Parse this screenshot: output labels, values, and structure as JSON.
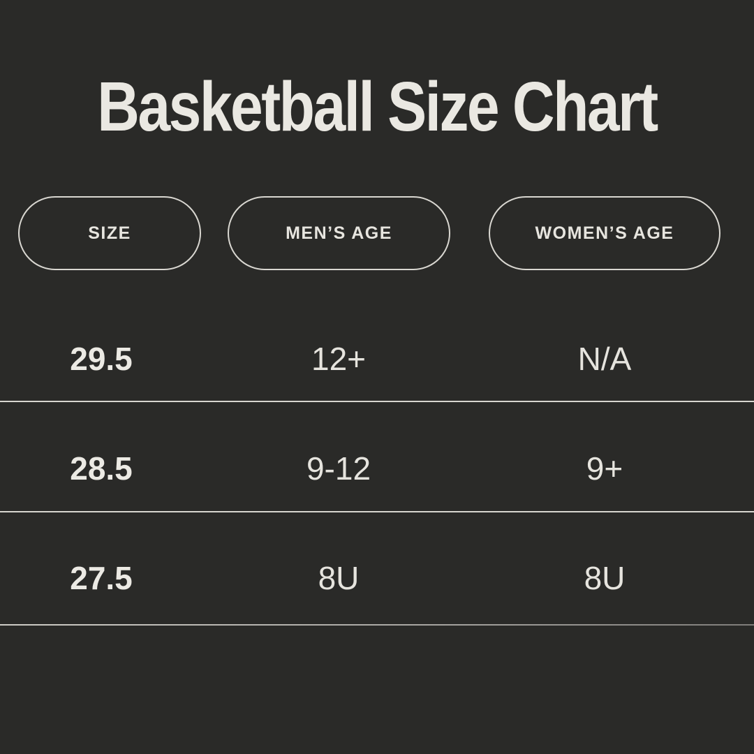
{
  "page": {
    "title": "Basketball Size Chart"
  },
  "colors": {
    "background": "#2a2a28",
    "text_cream": "#eae8e2",
    "pill_border": "#d9d7d1",
    "divider": "#d8d6d0"
  },
  "table": {
    "columns": [
      {
        "label": "SIZE"
      },
      {
        "label": "MEN’S AGE"
      },
      {
        "label": "WOMEN’S AGE"
      }
    ],
    "rows": [
      {
        "cells": [
          "29.5",
          "12+",
          "N/A"
        ]
      },
      {
        "cells": [
          "28.5",
          "9-12",
          "9+"
        ]
      },
      {
        "cells": [
          "27.5",
          "8U",
          "8U"
        ]
      }
    ]
  },
  "chart_data": {
    "type": "table",
    "title": "Basketball Size Chart",
    "columns": [
      "SIZE",
      "MEN’S AGE",
      "WOMEN’S AGE"
    ],
    "rows": [
      [
        "29.5",
        "12+",
        "N/A"
      ],
      [
        "28.5",
        "9-12",
        "9+"
      ],
      [
        "27.5",
        "8U",
        "8U"
      ]
    ]
  }
}
